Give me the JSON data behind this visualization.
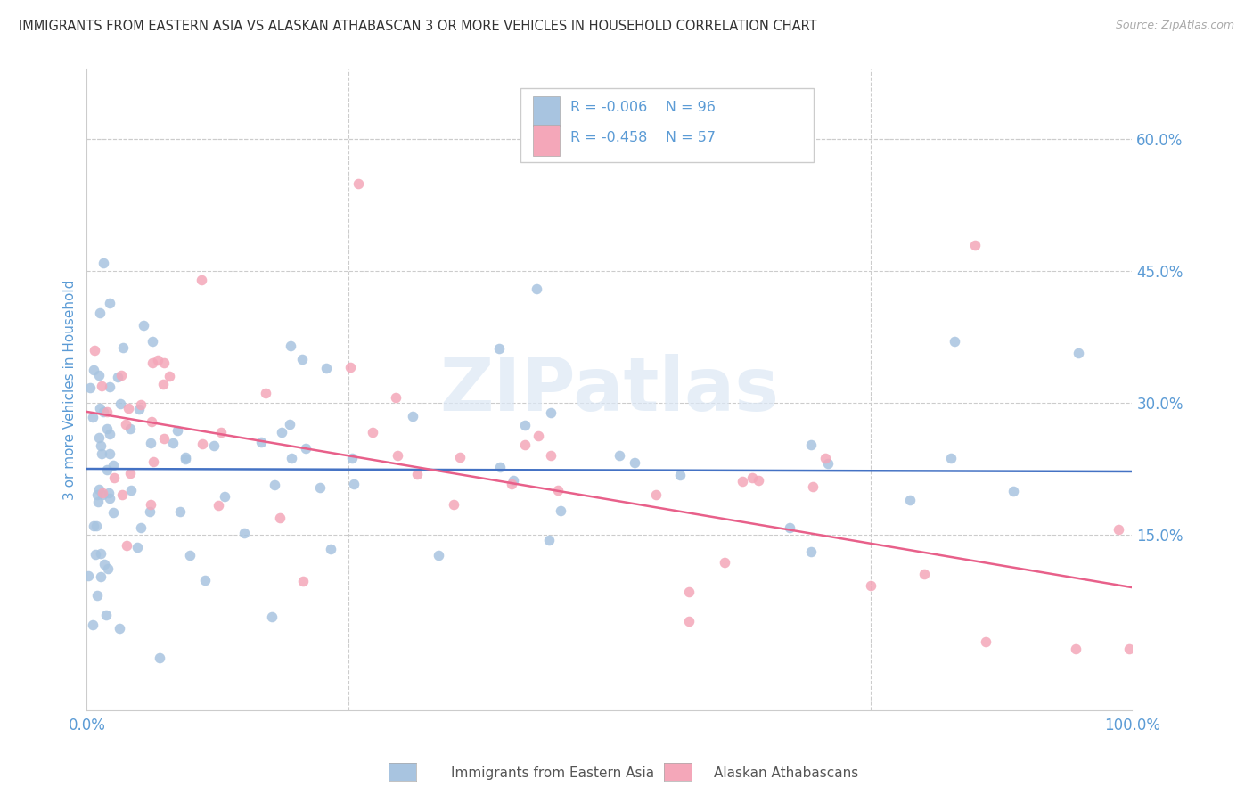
{
  "title": "IMMIGRANTS FROM EASTERN ASIA VS ALASKAN ATHABASCAN 3 OR MORE VEHICLES IN HOUSEHOLD CORRELATION CHART",
  "source": "Source: ZipAtlas.com",
  "ylabel": "3 or more Vehicles in Household",
  "legend_labels": [
    "Immigrants from Eastern Asia",
    "Alaskan Athabascans"
  ],
  "r_blue": -0.006,
  "n_blue": 96,
  "r_pink": -0.458,
  "n_pink": 57,
  "blue_color": "#a8c4e0",
  "pink_color": "#f4a7b9",
  "blue_line_color": "#4472c4",
  "pink_line_color": "#e8608a",
  "axis_color": "#5b9bd5",
  "tick_color": "#5b9bd5",
  "grid_color": "#cccccc",
  "watermark": "ZIPatlas",
  "xlim": [
    0,
    100
  ],
  "ylim": [
    -5,
    68
  ],
  "yticks_right": [
    15.0,
    30.0,
    45.0,
    60.0
  ],
  "figsize": [
    14.06,
    8.92
  ],
  "dpi": 100,
  "blue_trend_y0": 22.5,
  "blue_trend_y1": 22.2,
  "pink_trend_y0": 29.0,
  "pink_trend_y1": 9.0
}
